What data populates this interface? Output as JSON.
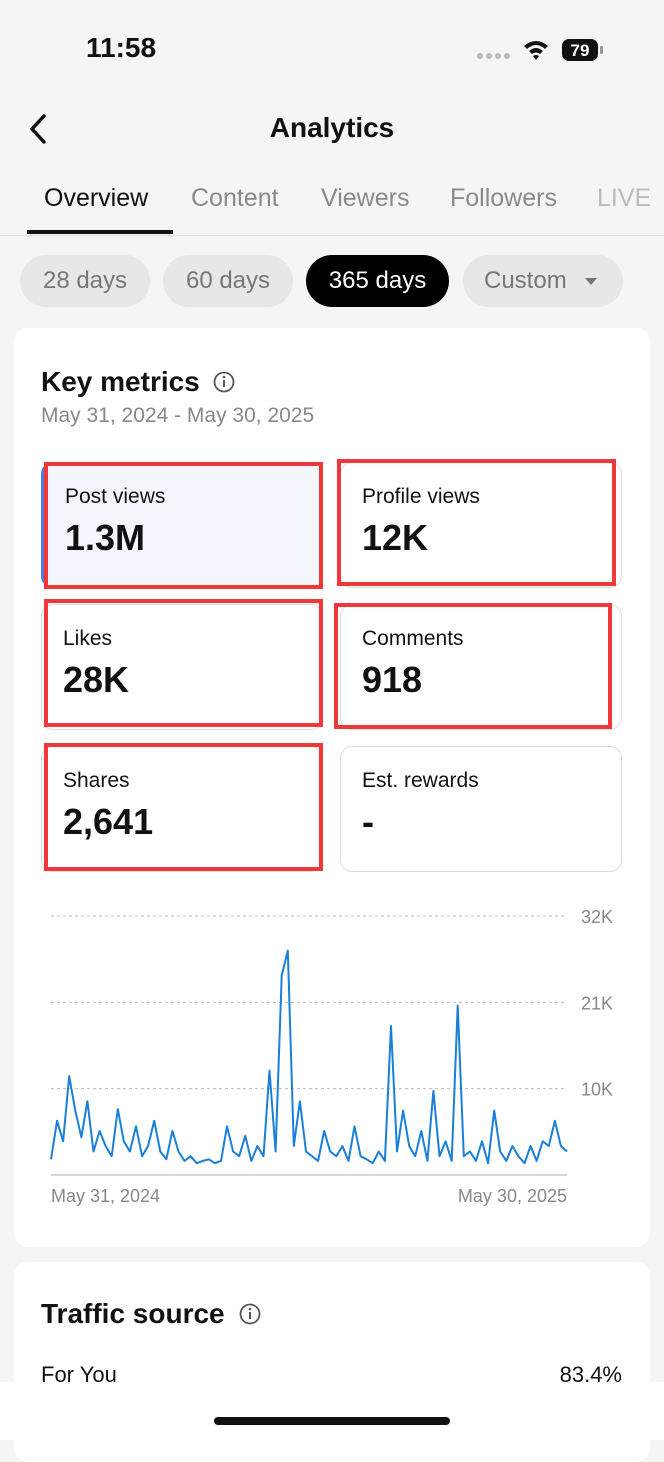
{
  "status_bar": {
    "time": "11:58",
    "battery": "79"
  },
  "header": {
    "title": "Analytics"
  },
  "tabs": [
    "Overview",
    "Content",
    "Viewers",
    "Followers",
    "LIVE"
  ],
  "ranges": [
    "28 days",
    "60 days",
    "365 days",
    "Custom"
  ],
  "key_metrics": {
    "title": "Key metrics",
    "date_range": "May 31, 2024 - May 30, 2025",
    "metrics": [
      {
        "label": "Post views",
        "value": "1.3M"
      },
      {
        "label": "Profile views",
        "value": "12K"
      },
      {
        "label": "Likes",
        "value": "28K"
      },
      {
        "label": "Comments",
        "value": "918"
      },
      {
        "label": "Shares",
        "value": "2,641"
      },
      {
        "label": "Est. rewards",
        "value": "-"
      }
    ]
  },
  "chart_data": {
    "type": "line",
    "categories": [
      "May 31, 2024",
      null,
      null,
      null,
      null,
      null,
      null,
      null,
      null,
      null,
      null,
      null,
      null,
      null,
      null,
      null,
      null,
      null,
      null,
      null,
      null,
      null,
      null,
      null,
      null,
      null,
      null,
      null,
      null,
      null,
      null,
      null,
      null,
      null,
      null,
      null,
      null,
      null,
      null,
      null,
      null,
      null,
      null,
      null,
      null,
      null,
      null,
      null,
      null,
      null,
      null,
      null,
      null,
      null,
      null,
      null,
      null,
      null,
      null,
      null,
      null,
      null,
      null,
      null,
      null,
      null,
      null,
      null,
      null,
      null,
      null,
      null,
      null,
      null,
      null,
      null,
      null,
      null,
      null,
      null,
      null,
      null,
      null,
      null,
      null,
      "May 30, 2025"
    ],
    "values": [
      1000,
      5900,
      3300,
      11600,
      7200,
      3800,
      8400,
      2000,
      4600,
      2700,
      1400,
      7400,
      3300,
      2000,
      5200,
      1400,
      2700,
      5900,
      2000,
      1000,
      4600,
      2000,
      800,
      1400,
      500,
      800,
      1000,
      500,
      800,
      5200,
      2000,
      1400,
      4000,
      800,
      2700,
      1400,
      12300,
      2000,
      24400,
      27600,
      2700,
      8400,
      2000,
      1400,
      800,
      4600,
      2000,
      1400,
      2700,
      800,
      5200,
      1400,
      1000,
      500,
      2000,
      800,
      18000,
      2000,
      7200,
      2700,
      1400,
      4600,
      800,
      9700,
      1400,
      3300,
      800,
      20600,
      1400,
      2000,
      800,
      3300,
      500,
      7200,
      2000,
      800,
      2700,
      1400,
      500,
      2700,
      800,
      3300,
      2700,
      5900,
      2700,
      2000
    ],
    "color": "#1a7fd8",
    "ylim": [
      -1000,
      32000
    ],
    "yticks": [
      {
        "value": 10000,
        "label": "10K"
      },
      {
        "value": 21000,
        "label": "21K"
      },
      {
        "value": 32000,
        "label": "32K"
      }
    ],
    "grid": true
  },
  "traffic_source": {
    "title": "Traffic source",
    "rows": [
      {
        "label": "For You",
        "value": "83.4%"
      }
    ]
  }
}
